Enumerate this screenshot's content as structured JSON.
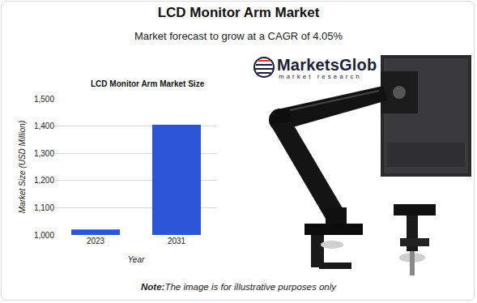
{
  "header": {
    "title": "LCD Monitor Arm Market",
    "subtitle": "Market forecast to grow at a CAGR of 4.05%"
  },
  "logo": {
    "name": "MarketsGlob",
    "tagline": "market research"
  },
  "footer": {
    "note_label": "Note:",
    "note": "The image is for illustrative purposes only"
  },
  "chart_data": {
    "type": "bar",
    "title": "LCD Monitor Arm Market Size",
    "x_label": "Year",
    "y_label": "Market Size (USD Million)",
    "categories": [
      "2023",
      "2031"
    ],
    "values": [
      1020,
      1405
    ],
    "color": "#2b54d6",
    "ylim": [
      1000,
      1500
    ],
    "yticks": [
      {
        "value": 1000,
        "label": "1,000"
      },
      {
        "value": 1100,
        "label": "1,100"
      },
      {
        "value": 1200,
        "label": "1,200"
      },
      {
        "value": 1300,
        "label": "1,300"
      },
      {
        "value": 1400,
        "label": "1,400"
      },
      {
        "value": 1500,
        "label": "1,500"
      }
    ],
    "grid": true
  }
}
